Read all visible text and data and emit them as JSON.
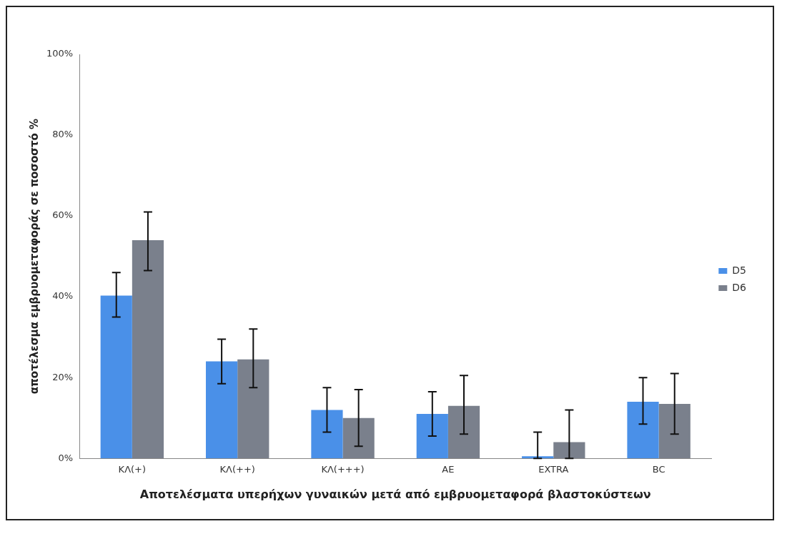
{
  "chart_data": {
    "type": "bar",
    "xlabel": "Αποτελέσματα υπερήχων γυναικών μετά από εμβρυομεταφορά βλαστοκύστεων",
    "ylabel": "αποτέλεσμα εμβρυομεταφοράς σε ποσοστό %",
    "categories": [
      "ΚΛ(+)",
      "ΚΛ(++)",
      "ΚΛ(+++)",
      "ΑΕ",
      "EXTRA",
      "BC"
    ],
    "series": [
      {
        "name": "D5",
        "color": "#4a90e8",
        "values": [
          40.3,
          24,
          12,
          11,
          0.5,
          14
        ],
        "errors": [
          [
            35,
            46
          ],
          [
            18.5,
            29.5
          ],
          [
            6.5,
            17.5
          ],
          [
            5.5,
            16.5
          ],
          [
            0,
            6.5
          ],
          [
            8.5,
            20
          ]
        ]
      },
      {
        "name": "D6",
        "color": "#7a808c",
        "values": [
          54,
          24.5,
          10,
          13,
          4,
          13.5
        ],
        "errors": [
          [
            46.5,
            61
          ],
          [
            17.5,
            32
          ],
          [
            3,
            17
          ],
          [
            6,
            20.5
          ],
          [
            0,
            12
          ],
          [
            6,
            21
          ]
        ]
      }
    ],
    "ylim": [
      0,
      100
    ],
    "yticks": [
      {
        "value": 0,
        "label": "0%"
      },
      {
        "value": 20,
        "label": "20%"
      },
      {
        "value": 40,
        "label": "40%"
      },
      {
        "value": 60,
        "label": "60%"
      },
      {
        "value": 80,
        "label": "80%"
      },
      {
        "value": 100,
        "label": "100%"
      }
    ],
    "grid": false,
    "legend": "right"
  }
}
